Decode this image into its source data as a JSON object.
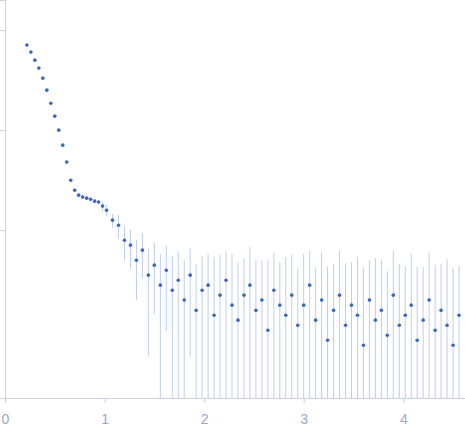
{
  "chart_data": {
    "type": "scatter",
    "x": [
      0.22,
      0.26,
      0.3,
      0.34,
      0.38,
      0.42,
      0.46,
      0.5,
      0.54,
      0.58,
      0.62,
      0.66,
      0.7,
      0.74,
      0.78,
      0.82,
      0.86,
      0.9,
      0.94,
      0.98,
      1.02,
      1.08,
      1.14,
      1.2,
      1.26,
      1.32,
      1.38,
      1.44,
      1.5,
      1.56,
      1.62,
      1.68,
      1.74,
      1.8,
      1.86,
      1.92,
      1.98,
      2.04,
      2.1,
      2.16,
      2.22,
      2.28,
      2.34,
      2.4,
      2.46,
      2.52,
      2.58,
      2.64,
      2.7,
      2.76,
      2.82,
      2.88,
      2.94,
      3.0,
      3.06,
      3.12,
      3.18,
      3.24,
      3.3,
      3.36,
      3.42,
      3.48,
      3.54,
      3.6,
      3.66,
      3.72,
      3.78,
      3.84,
      3.9,
      3.96,
      4.02,
      4.08,
      4.14,
      4.2,
      4.26,
      4.32,
      4.38,
      4.44,
      4.5,
      4.56
    ],
    "values": [
      0.708,
      0.603,
      0.501,
      0.417,
      0.331,
      0.251,
      0.186,
      0.138,
      0.1,
      0.0708,
      0.0479,
      0.0316,
      0.0251,
      0.0224,
      0.0214,
      0.0209,
      0.0204,
      0.0195,
      0.0191,
      0.0174,
      0.0158,
      0.0126,
      0.0112,
      0.00794,
      0.00708,
      0.00501,
      0.00631,
      0.00355,
      0.00447,
      0.00282,
      0.00398,
      0.00251,
      0.00316,
      0.002,
      0.00355,
      0.00158,
      0.00251,
      0.00282,
      0.00141,
      0.00224,
      0.00316,
      0.00178,
      0.00126,
      0.00224,
      0.00282,
      0.00158,
      0.002,
      0.001,
      0.00251,
      0.00178,
      0.00141,
      0.00224,
      0.00112,
      0.00178,
      0.00282,
      0.00126,
      0.002,
      0.000794,
      0.00158,
      0.00224,
      0.00112,
      0.00178,
      0.00141,
      0.000708,
      0.002,
      0.00126,
      0.00158,
      0.000891,
      0.00224,
      0.00112,
      0.00141,
      0.00178,
      0.000794,
      0.00126,
      0.002,
      0.001,
      0.00158,
      0.00112,
      0.000708,
      0.00141
    ],
    "errors": [
      0.005,
      0.004,
      0.003,
      0.003,
      0.002,
      0.002,
      0.002,
      0.002,
      0.001,
      0.001,
      0.001,
      0.001,
      0.001,
      0.001,
      0.001,
      0.001,
      0.001,
      0.001,
      0.001,
      0.002,
      0.002,
      0.002,
      0.003,
      0.003,
      0.003,
      0.003,
      0.003,
      0.003,
      0.003,
      0.003,
      0.003,
      0.003,
      0.003,
      0.003,
      0.003,
      0.003,
      0.003,
      0.003,
      0.004,
      0.0035,
      0.003,
      0.004,
      0.0035,
      0.003,
      0.004,
      0.0035,
      0.003,
      0.004,
      0.0035,
      0.003,
      0.004,
      0.0035,
      0.003,
      0.004,
      0.0035,
      0.003,
      0.004,
      0.0035,
      0.003,
      0.004,
      0.0035,
      0.003,
      0.004,
      0.0035,
      0.003,
      0.004,
      0.0035,
      0.003,
      0.004,
      0.0035,
      0.003,
      0.004,
      0.0035,
      0.003,
      0.004,
      0.0035,
      0.003,
      0.004,
      0.0035,
      0.003
    ],
    "color": "#3a68c0",
    "xlim": [
      0,
      4.62
    ],
    "ylim": [
      0.00021,
      2.0
    ],
    "xticks": [
      0,
      1,
      2,
      3,
      4
    ],
    "yticks": [
      0.01,
      0.1,
      1
    ],
    "log": "y",
    "tick_labels": "x",
    "marker": "circle"
  }
}
